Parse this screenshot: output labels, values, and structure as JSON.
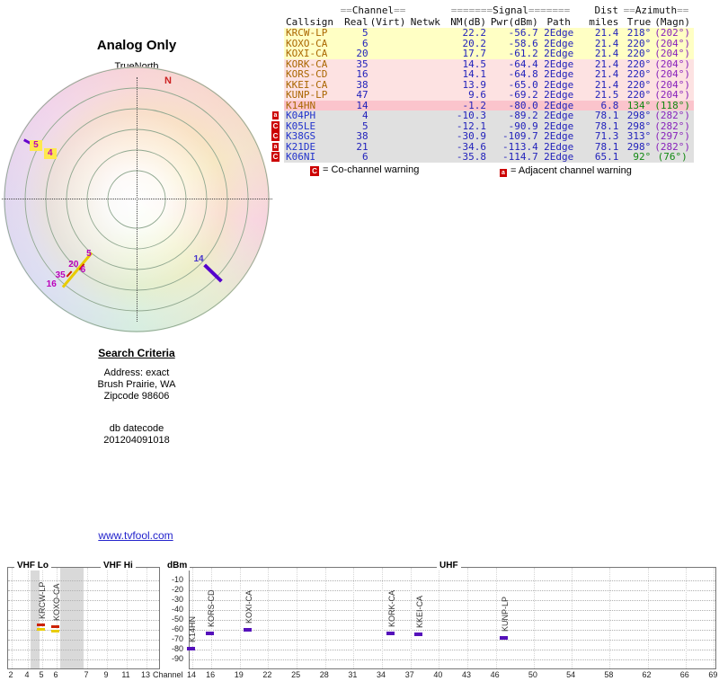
{
  "title": "Analog Only",
  "colors": {
    "link_blue": "#2222cc",
    "value_blue": "#2222bb",
    "magn_purple": "#8822bb",
    "good_green": "#118811",
    "callsign_amber": "#aa6600",
    "callsign_blue": "#2233cc",
    "flag_red": "#cc0000",
    "row_yellow": "#ffffc4",
    "row_pink": "#fde2e2",
    "row_deep_pink": "#fbc4cc",
    "row_gray": "#e0e0e0",
    "marker_purple": "#5511bb",
    "marker_red": "#cc2200",
    "marker_yellow": "#e8cc00"
  },
  "radar": {
    "north_label": "TrueNorth",
    "compass_marker": "N",
    "channel_labels": [
      {
        "text": "5",
        "az": 298,
        "r": 127,
        "highlight": true
      },
      {
        "text": "4",
        "az": 298,
        "r": 109,
        "highlight": true
      },
      {
        "text": "5",
        "az": 221,
        "r": 81
      },
      {
        "text": "20",
        "az": 224,
        "r": 101
      },
      {
        "text": "6",
        "az": 217,
        "r": 99
      },
      {
        "text": "35",
        "az": 225,
        "r": 120
      },
      {
        "text": "16",
        "az": 225,
        "r": 134
      },
      {
        "text": "14",
        "az": 134,
        "r": 96,
        "color": "#4433cc"
      }
    ],
    "spoke_marks": [
      {
        "az": 298,
        "r": 136,
        "len": 12,
        "w": 3,
        "color": "#6600cc"
      },
      {
        "az": 220,
        "r": 103,
        "len": 50,
        "w": 3,
        "color": "#e8cc00"
      },
      {
        "az": 222,
        "r": 112,
        "len": 8,
        "w": 2,
        "color": "#cc2200"
      },
      {
        "az": 219,
        "r": 97,
        "len": 8,
        "w": 2,
        "color": "#cc2200"
      },
      {
        "az": 134,
        "r": 118,
        "len": 26,
        "w": 4,
        "color": "#5500cc"
      }
    ]
  },
  "table": {
    "group_headers": [
      {
        "pre": "==",
        "label": "Channel",
        "post": "=="
      },
      {
        "pre": "=======",
        "label": "Signal",
        "post": "======="
      },
      {
        "pre": "",
        "label": "Dist",
        "post": ""
      },
      {
        "pre": "==",
        "label": "Azimuth",
        "post": "=="
      }
    ],
    "col_headers": [
      "Callsign",
      "Real",
      "(Virt)",
      "Netwk",
      "NM(dB)",
      "Pwr(dBm)",
      "Path",
      "miles",
      "True",
      "(Magn)"
    ],
    "rows": [
      {
        "flag": "",
        "callsign": "KRCW-LP",
        "real": "5",
        "virt": "",
        "netwk": "",
        "nm": "22.2",
        "pwr": "-56.7",
        "path": "2Edge",
        "miles": "21.4",
        "true_az": "218°",
        "magn_az": "(202°)",
        "bg": "#ffffc4",
        "cs_color": "#aa6600",
        "az_green": false
      },
      {
        "flag": "",
        "callsign": "KOXO-CA",
        "real": "6",
        "virt": "",
        "netwk": "",
        "nm": "20.2",
        "pwr": "-58.6",
        "path": "2Edge",
        "miles": "21.4",
        "true_az": "220°",
        "magn_az": "(204°)",
        "bg": "#ffffc4",
        "cs_color": "#aa6600",
        "az_green": false
      },
      {
        "flag": "",
        "callsign": "KOXI-CA",
        "real": "20",
        "virt": "",
        "netwk": "",
        "nm": "17.7",
        "pwr": "-61.2",
        "path": "2Edge",
        "miles": "21.4",
        "true_az": "220°",
        "magn_az": "(204°)",
        "bg": "#ffffc4",
        "cs_color": "#aa6600",
        "az_green": false
      },
      {
        "flag": "",
        "callsign": "KORK-CA",
        "real": "35",
        "virt": "",
        "netwk": "",
        "nm": "14.5",
        "pwr": "-64.4",
        "path": "2Edge",
        "miles": "21.4",
        "true_az": "220°",
        "magn_az": "(204°)",
        "bg": "#fde2e2",
        "cs_color": "#aa6600",
        "az_green": false
      },
      {
        "flag": "",
        "callsign": "KORS-CD",
        "real": "16",
        "virt": "",
        "netwk": "",
        "nm": "14.1",
        "pwr": "-64.8",
        "path": "2Edge",
        "miles": "21.4",
        "true_az": "220°",
        "magn_az": "(204°)",
        "bg": "#fde2e2",
        "cs_color": "#aa6600",
        "az_green": false
      },
      {
        "flag": "",
        "callsign": "KKEI-CA",
        "real": "38",
        "virt": "",
        "netwk": "",
        "nm": "13.9",
        "pwr": "-65.0",
        "path": "2Edge",
        "miles": "21.4",
        "true_az": "220°",
        "magn_az": "(204°)",
        "bg": "#fde2e2",
        "cs_color": "#aa6600",
        "az_green": false
      },
      {
        "flag": "",
        "callsign": "KUNP-LP",
        "real": "47",
        "virt": "",
        "netwk": "",
        "nm": "9.6",
        "pwr": "-69.2",
        "path": "2Edge",
        "miles": "21.5",
        "true_az": "220°",
        "magn_az": "(204°)",
        "bg": "#fde2e2",
        "cs_color": "#aa6600",
        "az_green": false
      },
      {
        "flag": "",
        "callsign": "K14HN",
        "real": "14",
        "virt": "",
        "netwk": "",
        "nm": "-1.2",
        "pwr": "-80.0",
        "path": "2Edge",
        "miles": "6.8",
        "true_az": "134°",
        "magn_az": "(118°)",
        "bg": "#fbc4cc",
        "cs_color": "#aa6600",
        "az_green": true
      },
      {
        "flag": "a",
        "callsign": "K04PH",
        "real": "4",
        "virt": "",
        "netwk": "",
        "nm": "-10.3",
        "pwr": "-89.2",
        "path": "2Edge",
        "miles": "78.1",
        "true_az": "298°",
        "magn_az": "(282°)",
        "bg": "#e0e0e0",
        "cs_color": "#2233cc",
        "az_green": false
      },
      {
        "flag": "C",
        "callsign": "K05LE",
        "real": "5",
        "virt": "",
        "netwk": "",
        "nm": "-12.1",
        "pwr": "-90.9",
        "path": "2Edge",
        "miles": "78.1",
        "true_az": "298°",
        "magn_az": "(282°)",
        "bg": "#e0e0e0",
        "cs_color": "#2233cc",
        "az_green": false
      },
      {
        "flag": "C",
        "callsign": "K38GS",
        "real": "38",
        "virt": "",
        "netwk": "",
        "nm": "-30.9",
        "pwr": "-109.7",
        "path": "2Edge",
        "miles": "71.3",
        "true_az": "313°",
        "magn_az": "(297°)",
        "bg": "#e0e0e0",
        "cs_color": "#2233cc",
        "az_green": false
      },
      {
        "flag": "a",
        "callsign": "K21DE",
        "real": "21",
        "virt": "",
        "netwk": "",
        "nm": "-34.6",
        "pwr": "-113.4",
        "path": "2Edge",
        "miles": "78.1",
        "true_az": "298°",
        "magn_az": "(282°)",
        "bg": "#e0e0e0",
        "cs_color": "#2233cc",
        "az_green": false
      },
      {
        "flag": "C",
        "callsign": "K06NI",
        "real": "6",
        "virt": "",
        "netwk": "",
        "nm": "-35.8",
        "pwr": "-114.7",
        "path": "2Edge",
        "miles": "65.1",
        "true_az": "92°",
        "magn_az": "(76°)",
        "bg": "#e0e0e0",
        "cs_color": "#2233cc",
        "az_green": true
      }
    ]
  },
  "legend": {
    "co_channel": {
      "flag": "C",
      "text": "= Co-channel warning"
    },
    "adjacent": {
      "flag": "a",
      "text": "= Adjacent channel warning"
    }
  },
  "search_criteria": {
    "title": "Search Criteria",
    "lines": [
      "Address: exact",
      "Brush Prairie, WA",
      "Zipcode 98606"
    ],
    "datecode_label": "db datecode",
    "datecode": "201204091018"
  },
  "link": {
    "text": "www.tvfool.com"
  },
  "chart_data": {
    "type": "scatter",
    "title": "",
    "xlabel": "Channel",
    "ylabel": "dBm",
    "ylim": [
      -95,
      -5
    ],
    "grid": true,
    "band_labels": [
      "VHF Lo",
      "VHF Hi",
      "UHF"
    ],
    "y_ticks": [
      -10,
      -20,
      -30,
      -40,
      -50,
      -60,
      -70,
      -80,
      -90
    ],
    "vhf_ticks": [
      2,
      4,
      5,
      6,
      7,
      9,
      11,
      13
    ],
    "uhf_ticks": [
      14,
      16,
      19,
      22,
      25,
      28,
      31,
      34,
      37,
      40,
      43,
      46,
      50,
      54,
      58,
      62,
      66,
      69
    ],
    "points": [
      {
        "station": "KRCW-LP",
        "channel": 5,
        "dbm": -56.7,
        "band": "vhf",
        "marker": "red-yellow"
      },
      {
        "station": "KOXO-CA",
        "channel": 6,
        "dbm": -58.6,
        "band": "vhf",
        "marker": "red-yellow"
      },
      {
        "station": "K14HN",
        "channel": 14,
        "dbm": -80.0,
        "band": "uhf",
        "marker": "purple"
      },
      {
        "station": "KORS-CD",
        "channel": 16,
        "dbm": -64.8,
        "band": "uhf",
        "marker": "purple"
      },
      {
        "station": "KOXI-CA",
        "channel": 20,
        "dbm": -61.2,
        "band": "uhf",
        "marker": "purple"
      },
      {
        "station": "KORK-CA",
        "channel": 35,
        "dbm": -64.4,
        "band": "uhf",
        "marker": "purple"
      },
      {
        "station": "KKEI-CA",
        "channel": 38,
        "dbm": -65.0,
        "band": "uhf",
        "marker": "purple"
      },
      {
        "station": "KUNP-LP",
        "channel": 47,
        "dbm": -69.2,
        "band": "uhf",
        "marker": "purple"
      }
    ]
  }
}
